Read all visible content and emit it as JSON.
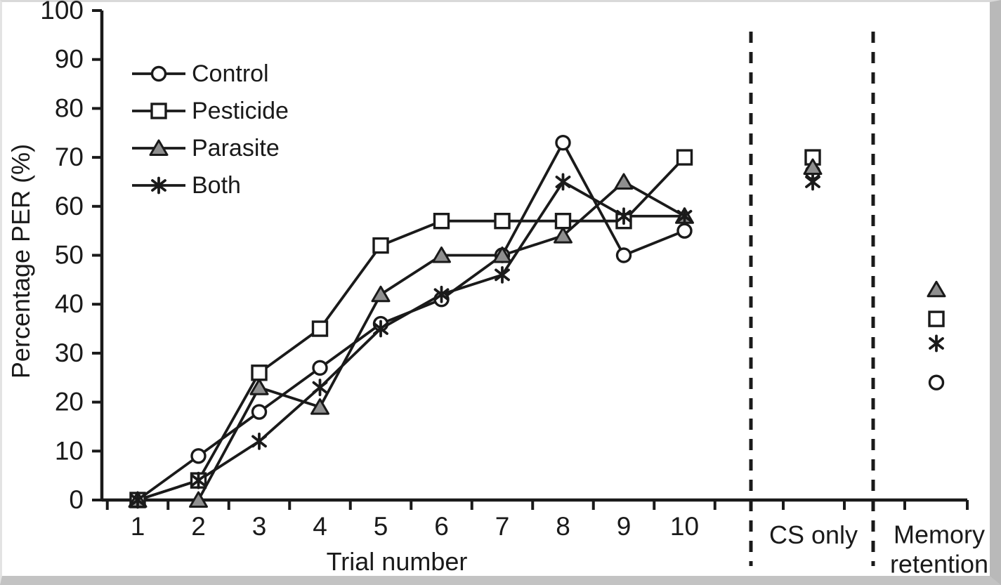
{
  "figure": {
    "border_color": "#b9b9b9",
    "background": "#ffffff"
  },
  "chart_data": {
    "type": "line",
    "title": "",
    "xlabel": "Trial number",
    "ylabel": "Percentage PER (%)",
    "ylim": [
      0,
      100
    ],
    "yticks": [
      "0",
      "10",
      "20",
      "30",
      "40",
      "50",
      "60",
      "70",
      "80",
      "90",
      "100"
    ],
    "categories": [
      "1",
      "2",
      "3",
      "4",
      "5",
      "6",
      "7",
      "8",
      "9",
      "10"
    ],
    "x_sections": [
      "CS only",
      "Memory retention"
    ],
    "grid": false,
    "legend_position": "inside-top-left",
    "line_color": "#1a1a1a",
    "series": [
      {
        "name": "Control",
        "marker": "circle",
        "marker_fill": "#ffffff",
        "values": [
          0,
          9,
          18,
          27,
          36,
          41,
          50,
          73,
          50,
          55
        ],
        "cs_only": 67,
        "memory_retention": 24
      },
      {
        "name": "Pesticide",
        "marker": "square",
        "marker_fill": "#ffffff",
        "values": [
          0,
          4,
          26,
          35,
          52,
          57,
          57,
          57,
          57,
          70
        ],
        "cs_only": 70,
        "memory_retention": 37
      },
      {
        "name": "Parasite",
        "marker": "triangle",
        "marker_fill": "#8f8f8f",
        "values": [
          0,
          0,
          23,
          19,
          42,
          50,
          50,
          54,
          65,
          58
        ],
        "cs_only": 68,
        "memory_retention": 43
      },
      {
        "name": "Both",
        "marker": "asterisk",
        "marker_fill": "none",
        "values": [
          0,
          4,
          12,
          23,
          35,
          42,
          46,
          65,
          58,
          58
        ],
        "cs_only": 65,
        "memory_retention": 32
      }
    ]
  }
}
